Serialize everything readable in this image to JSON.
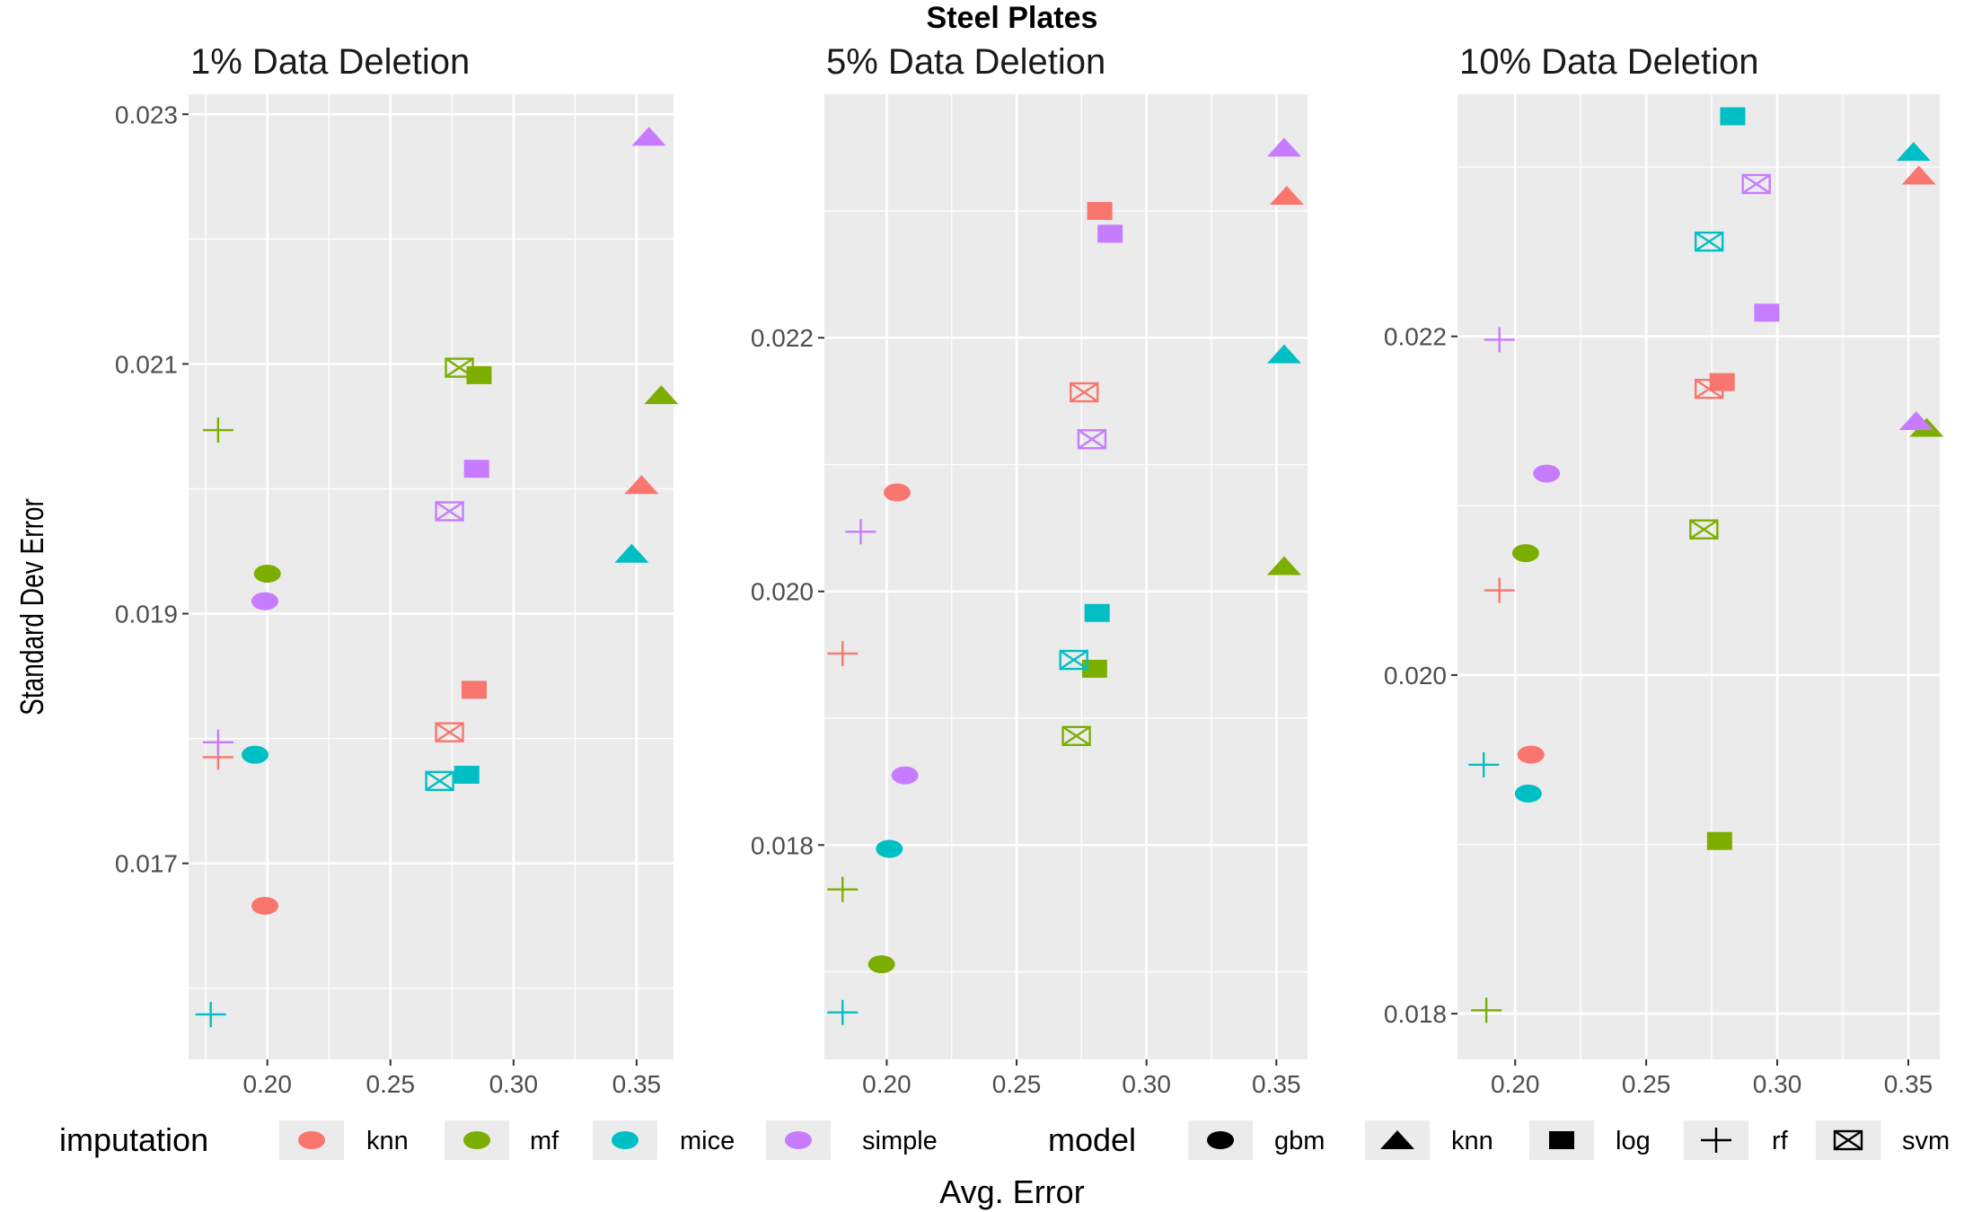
{
  "main_title": "Steel Plates",
  "y_axis_label": "Standard Dev Error",
  "x_axis_label": "Avg. Error",
  "colors": {
    "knn": "#F8766D",
    "mf": "#7CAE00",
    "mice": "#00BFC4",
    "simple": "#C77CFF",
    "panel_bg": "#EBEBEB",
    "grid": "#FFFFFF",
    "tick_text": "#4D4D4D"
  },
  "legend": {
    "imputation_title": "imputation",
    "imputation_items": [
      {
        "key": "knn",
        "label": "knn"
      },
      {
        "key": "mf",
        "label": "mf"
      },
      {
        "key": "mice",
        "label": "mice"
      },
      {
        "key": "simple",
        "label": "simple"
      }
    ],
    "model_title": "model",
    "model_items": [
      {
        "key": "gbm",
        "label": "gbm",
        "shape": "circle"
      },
      {
        "key": "knn",
        "label": "knn",
        "shape": "triangle"
      },
      {
        "key": "log",
        "label": "log",
        "shape": "square"
      },
      {
        "key": "rf",
        "label": "rf",
        "shape": "plus"
      },
      {
        "key": "svm",
        "label": "svm",
        "shape": "boxcross"
      }
    ]
  },
  "chart_data": [
    {
      "type": "scatter",
      "title": "1% Data Deletion",
      "xlim": [
        0.168,
        0.365
      ],
      "ylim": [
        0.01543,
        0.02316
      ],
      "x_ticks": [
        0.2,
        0.25,
        0.3,
        0.35
      ],
      "x_tick_labels": [
        "0.20",
        "0.25",
        "0.30",
        "0.35"
      ],
      "y_ticks": [
        0.017,
        0.019,
        0.021,
        0.023
      ],
      "y_tick_labels": [
        "0.017",
        "0.019",
        "0.021",
        "0.023"
      ],
      "points": [
        {
          "imputation": "knn",
          "model": "gbm",
          "x": 0.199,
          "y": 0.01666
        },
        {
          "imputation": "knn",
          "model": "knn",
          "x": 0.352,
          "y": 0.02003
        },
        {
          "imputation": "knn",
          "model": "log",
          "x": 0.284,
          "y": 0.01839
        },
        {
          "imputation": "knn",
          "model": "rf",
          "x": 0.18,
          "y": 0.01785
        },
        {
          "imputation": "knn",
          "model": "svm",
          "x": 0.274,
          "y": 0.01805
        },
        {
          "imputation": "mf",
          "model": "gbm",
          "x": 0.2,
          "y": 0.01932
        },
        {
          "imputation": "mf",
          "model": "knn",
          "x": 0.36,
          "y": 0.02075
        },
        {
          "imputation": "mf",
          "model": "log",
          "x": 0.286,
          "y": 0.02091
        },
        {
          "imputation": "mf",
          "model": "rf",
          "x": 0.18,
          "y": 0.02047
        },
        {
          "imputation": "mf",
          "model": "svm",
          "x": 0.278,
          "y": 0.02097
        },
        {
          "imputation": "mice",
          "model": "gbm",
          "x": 0.195,
          "y": 0.01787
        },
        {
          "imputation": "mice",
          "model": "knn",
          "x": 0.348,
          "y": 0.01948
        },
        {
          "imputation": "mice",
          "model": "log",
          "x": 0.281,
          "y": 0.01771
        },
        {
          "imputation": "mice",
          "model": "rf",
          "x": 0.177,
          "y": 0.01579
        },
        {
          "imputation": "mice",
          "model": "svm",
          "x": 0.27,
          "y": 0.01766
        },
        {
          "imputation": "simple",
          "model": "gbm",
          "x": 0.199,
          "y": 0.0191
        },
        {
          "imputation": "simple",
          "model": "knn",
          "x": 0.355,
          "y": 0.02282
        },
        {
          "imputation": "simple",
          "model": "log",
          "x": 0.285,
          "y": 0.02016
        },
        {
          "imputation": "simple",
          "model": "rf",
          "x": 0.18,
          "y": 0.01797
        },
        {
          "imputation": "simple",
          "model": "svm",
          "x": 0.274,
          "y": 0.01982
        }
      ]
    },
    {
      "type": "scatter",
      "title": "5% Data Deletion",
      "xlim": [
        0.176,
        0.362
      ],
      "ylim": [
        0.01631,
        0.02392
      ],
      "x_ticks": [
        0.2,
        0.25,
        0.3,
        0.35
      ],
      "x_tick_labels": [
        "0.20",
        "0.25",
        "0.30",
        "0.35"
      ],
      "y_ticks": [
        0.018,
        0.02,
        0.022
      ],
      "y_tick_labels": [
        "0.018",
        "0.020",
        "0.022"
      ],
      "points": [
        {
          "imputation": "knn",
          "model": "gbm",
          "x": 0.204,
          "y": 0.02078
        },
        {
          "imputation": "knn",
          "model": "knn",
          "x": 0.354,
          "y": 0.02312
        },
        {
          "imputation": "knn",
          "model": "log",
          "x": 0.282,
          "y": 0.023
        },
        {
          "imputation": "knn",
          "model": "rf",
          "x": 0.183,
          "y": 0.01951
        },
        {
          "imputation": "knn",
          "model": "svm",
          "x": 0.276,
          "y": 0.02157
        },
        {
          "imputation": "mf",
          "model": "gbm",
          "x": 0.198,
          "y": 0.01706
        },
        {
          "imputation": "mf",
          "model": "knn",
          "x": 0.353,
          "y": 0.0202
        },
        {
          "imputation": "mf",
          "model": "log",
          "x": 0.28,
          "y": 0.01939
        },
        {
          "imputation": "mf",
          "model": "rf",
          "x": 0.183,
          "y": 0.01765
        },
        {
          "imputation": "mf",
          "model": "svm",
          "x": 0.273,
          "y": 0.01886
        },
        {
          "imputation": "mice",
          "model": "gbm",
          "x": 0.201,
          "y": 0.01797
        },
        {
          "imputation": "mice",
          "model": "knn",
          "x": 0.353,
          "y": 0.02187
        },
        {
          "imputation": "mice",
          "model": "log",
          "x": 0.281,
          "y": 0.01983
        },
        {
          "imputation": "mice",
          "model": "rf",
          "x": 0.183,
          "y": 0.01668
        },
        {
          "imputation": "mice",
          "model": "svm",
          "x": 0.272,
          "y": 0.01946
        },
        {
          "imputation": "simple",
          "model": "gbm",
          "x": 0.207,
          "y": 0.01855
        },
        {
          "imputation": "simple",
          "model": "knn",
          "x": 0.353,
          "y": 0.0235
        },
        {
          "imputation": "simple",
          "model": "log",
          "x": 0.286,
          "y": 0.02282
        },
        {
          "imputation": "simple",
          "model": "rf",
          "x": 0.19,
          "y": 0.02047
        },
        {
          "imputation": "simple",
          "model": "svm",
          "x": 0.279,
          "y": 0.0212
        }
      ]
    },
    {
      "type": "scatter",
      "title": "10% Data Deletion",
      "xlim": [
        0.178,
        0.362
      ],
      "ylim": [
        0.01773,
        0.02343
      ],
      "x_ticks": [
        0.2,
        0.25,
        0.3,
        0.35
      ],
      "x_tick_labels": [
        "0.20",
        "0.25",
        "0.30",
        "0.35"
      ],
      "y_ticks": [
        0.018,
        0.02,
        0.022
      ],
      "y_tick_labels": [
        "0.018",
        "0.020",
        "0.022"
      ],
      "points": [
        {
          "imputation": "knn",
          "model": "gbm",
          "x": 0.206,
          "y": 0.01953
        },
        {
          "imputation": "knn",
          "model": "knn",
          "x": 0.354,
          "y": 0.02295
        },
        {
          "imputation": "knn",
          "model": "log",
          "x": 0.279,
          "y": 0.02173
        },
        {
          "imputation": "knn",
          "model": "rf",
          "x": 0.194,
          "y": 0.0205
        },
        {
          "imputation": "knn",
          "model": "svm",
          "x": 0.274,
          "y": 0.02169
        },
        {
          "imputation": "mf",
          "model": "gbm",
          "x": 0.204,
          "y": 0.02072
        },
        {
          "imputation": "mf",
          "model": "knn",
          "x": 0.357,
          "y": 0.02146
        },
        {
          "imputation": "mf",
          "model": "log",
          "x": 0.278,
          "y": 0.01902
        },
        {
          "imputation": "mf",
          "model": "rf",
          "x": 0.189,
          "y": 0.01802
        },
        {
          "imputation": "mf",
          "model": "svm",
          "x": 0.272,
          "y": 0.02086
        },
        {
          "imputation": "mice",
          "model": "gbm",
          "x": 0.205,
          "y": 0.0193
        },
        {
          "imputation": "mice",
          "model": "knn",
          "x": 0.352,
          "y": 0.02309
        },
        {
          "imputation": "mice",
          "model": "log",
          "x": 0.283,
          "y": 0.0233
        },
        {
          "imputation": "mice",
          "model": "rf",
          "x": 0.188,
          "y": 0.01947
        },
        {
          "imputation": "mice",
          "model": "svm",
          "x": 0.274,
          "y": 0.02256
        },
        {
          "imputation": "simple",
          "model": "gbm",
          "x": 0.212,
          "y": 0.02119
        },
        {
          "imputation": "simple",
          "model": "knn",
          "x": 0.353,
          "y": 0.0215
        },
        {
          "imputation": "simple",
          "model": "log",
          "x": 0.296,
          "y": 0.02214
        },
        {
          "imputation": "simple",
          "model": "rf",
          "x": 0.194,
          "y": 0.02198
        },
        {
          "imputation": "simple",
          "model": "svm",
          "x": 0.292,
          "y": 0.0229
        }
      ]
    }
  ]
}
